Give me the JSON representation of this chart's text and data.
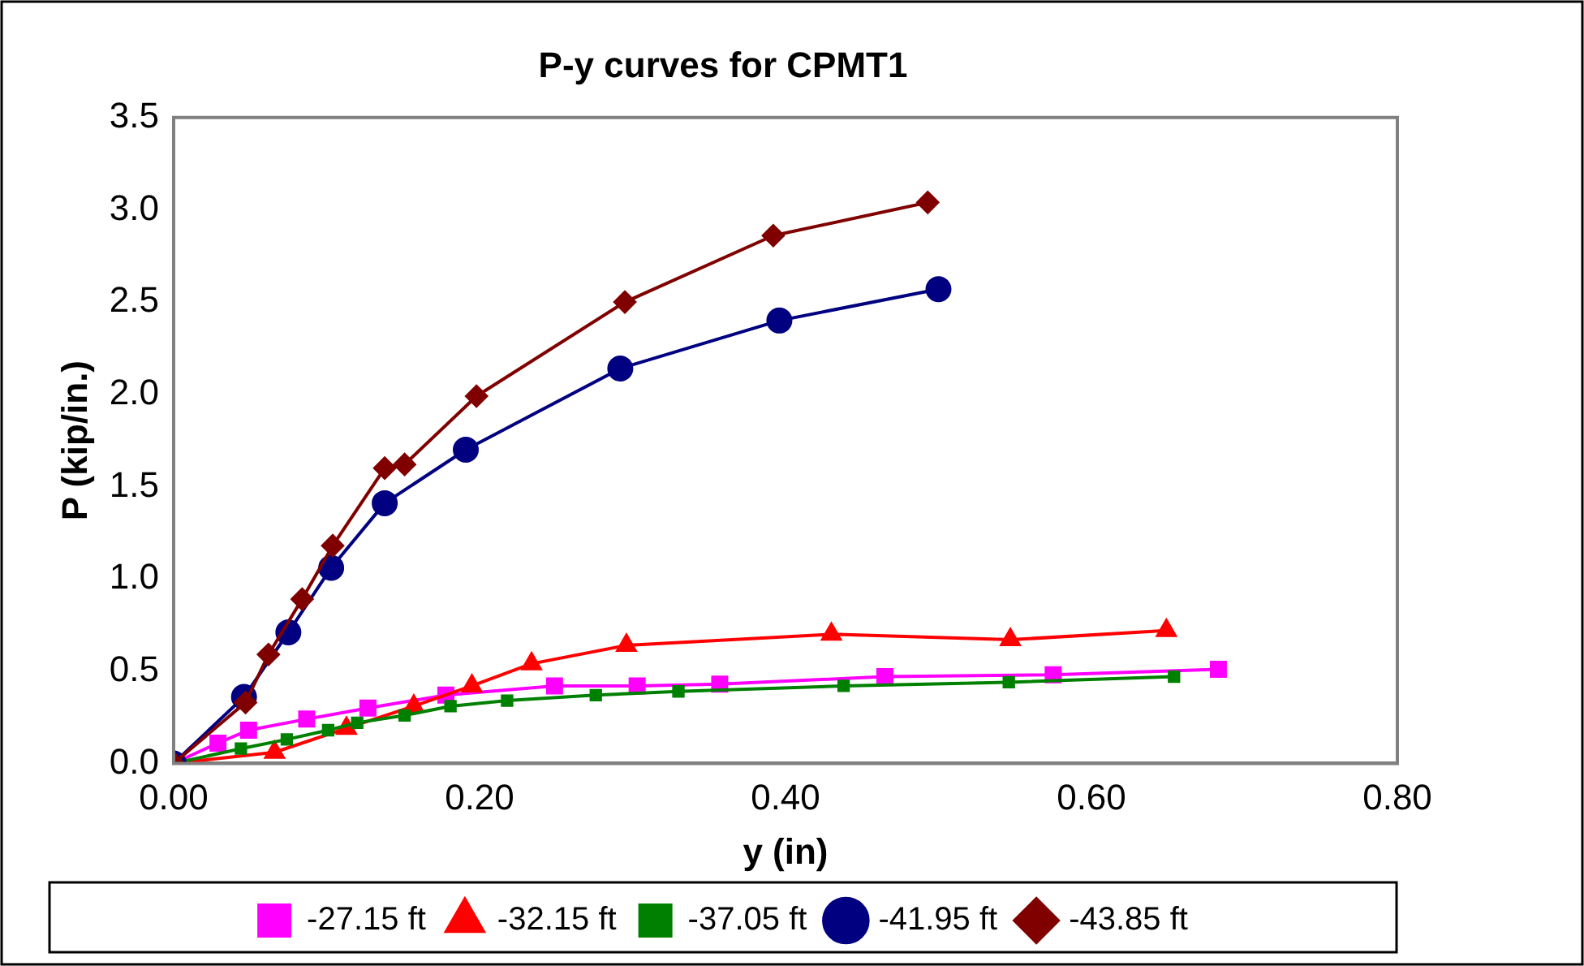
{
  "chart_data": {
    "type": "line",
    "title": "P-y curves for CPMT1",
    "xlabel": "y (in)",
    "ylabel": "P (kip/in.)",
    "xlim": [
      0,
      0.8
    ],
    "xticks": [
      {
        "value": 0,
        "label": "0.00"
      },
      {
        "value": 0.2,
        "label": "0.20"
      },
      {
        "value": 0.4,
        "label": "0.40"
      },
      {
        "value": 0.6,
        "label": "0.60"
      },
      {
        "value": 0.8,
        "label": "0.80"
      }
    ],
    "ylim": [
      0,
      3.5
    ],
    "yticks": [
      {
        "value": 0,
        "label": "0.0"
      },
      {
        "value": 0.5,
        "label": "0.5"
      },
      {
        "value": 1,
        "label": "1.0"
      },
      {
        "value": 1.5,
        "label": "1.5"
      },
      {
        "value": 2,
        "label": "2.0"
      },
      {
        "value": 2.5,
        "label": "2.5"
      },
      {
        "value": 3,
        "label": "3.0"
      },
      {
        "value": 3.5,
        "label": "3.5"
      }
    ],
    "grid": false,
    "legend": "bottom",
    "line_style": "solid",
    "series": [
      {
        "name": "-27.15 ft",
        "color": "#ff00ff",
        "marker": "square",
        "x": [
          0,
          0.029,
          0.049,
          0.087,
          0.127,
          0.178,
          0.249,
          0.303,
          0.357,
          0.465,
          0.575,
          0.683
        ],
        "values": [
          0,
          0.11,
          0.18,
          0.24,
          0.3,
          0.37,
          0.42,
          0.42,
          0.43,
          0.47,
          0.48,
          0.51
        ]
      },
      {
        "name": "-32.15 ft",
        "color": "#ff0000",
        "marker": "triangle",
        "x": [
          0,
          0.066,
          0.113,
          0.157,
          0.195,
          0.234,
          0.296,
          0.43,
          0.547,
          0.649
        ],
        "values": [
          0,
          0.06,
          0.19,
          0.31,
          0.42,
          0.54,
          0.64,
          0.7,
          0.67,
          0.72
        ]
      },
      {
        "name": "-37.05 ft",
        "color": "#008000",
        "marker": "square",
        "x": [
          0,
          0.044,
          0.074,
          0.101,
          0.12,
          0.151,
          0.181,
          0.218,
          0.276,
          0.33,
          0.438,
          0.546,
          0.654
        ],
        "values": [
          0,
          0.08,
          0.13,
          0.18,
          0.22,
          0.26,
          0.31,
          0.34,
          0.37,
          0.39,
          0.42,
          0.44,
          0.47
        ]
      },
      {
        "name": "-41.95 ft",
        "color": "#000080",
        "marker": "circle",
        "x": [
          0,
          0.046,
          0.075,
          0.103,
          0.138,
          0.191,
          0.292,
          0.396,
          0.5
        ],
        "values": [
          0,
          0.36,
          0.71,
          1.06,
          1.41,
          1.7,
          2.14,
          2.4,
          2.57
        ]
      },
      {
        "name": "-43.85 ft",
        "color": "#800000",
        "marker": "diamond",
        "x": [
          0,
          0.047,
          0.062,
          0.084,
          0.104,
          0.138,
          0.151,
          0.198,
          0.295,
          0.392,
          0.493
        ],
        "values": [
          0,
          0.33,
          0.59,
          0.89,
          1.18,
          1.6,
          1.62,
          1.99,
          2.5,
          2.86,
          3.04
        ]
      }
    ]
  }
}
